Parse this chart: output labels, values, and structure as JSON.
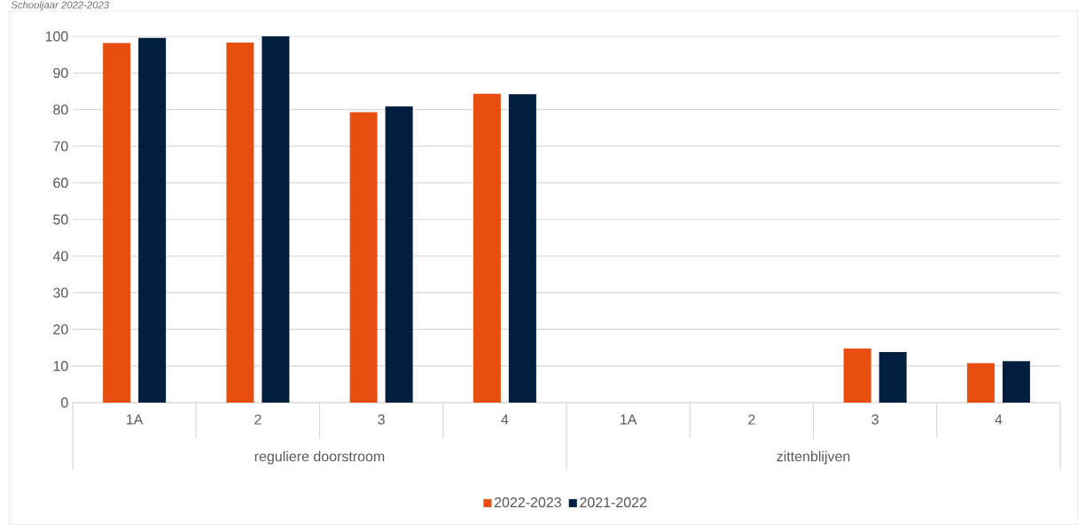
{
  "chart_data": {
    "type": "bar",
    "title": "Schooljaar 2022-2023",
    "categories": [
      "1A",
      "2",
      "3",
      "4",
      "1A",
      "2",
      "3",
      "4"
    ],
    "series": [
      {
        "name": "2022-2023",
        "color": "#e84e10",
        "values": [
          98.2,
          98.3,
          79.3,
          84.3,
          null,
          null,
          14.8,
          10.8
        ]
      },
      {
        "name": "2021-2022",
        "color": "#001e3e",
        "values": [
          99.6,
          100,
          80.9,
          84.2,
          null,
          null,
          13.8,
          11.3
        ]
      }
    ],
    "annotations": [
      "reguliere doorstroom",
      "zittenblijven"
    ],
    "ylim": [
      0,
      100
    ],
    "yticks": [
      0,
      10,
      20,
      30,
      40,
      50,
      60,
      70,
      80,
      90,
      100
    ],
    "grid": "y",
    "legend": "bottom"
  }
}
